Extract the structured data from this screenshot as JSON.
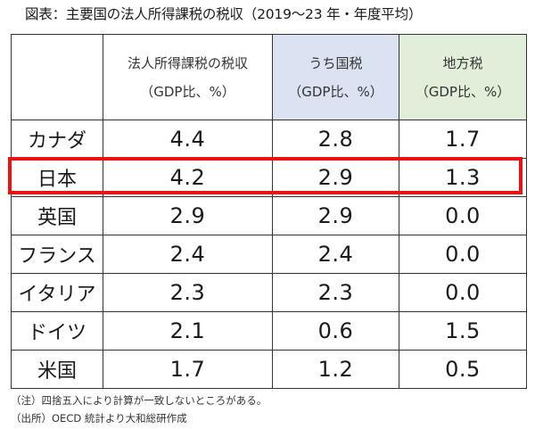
{
  "chart_data": {
    "type": "table",
    "title": "図表：主要国の法人所得課税の税収（2019～23 年・年度平均）",
    "columns": [
      {
        "label": "法人所得課税の税収",
        "unit": "（GDP比、%）",
        "color": "#ffffff"
      },
      {
        "label": "うち国税",
        "unit": "（GDP比、%）",
        "color": "#dbe3f2"
      },
      {
        "label": "地方税",
        "unit": "（GDP比、%）",
        "color": "#e1efda"
      }
    ],
    "rows": [
      {
        "country": "カナダ",
        "values": [
          "4.4",
          "2.8",
          "1.7"
        ]
      },
      {
        "country": "日本",
        "values": [
          "4.2",
          "2.9",
          "1.3"
        ]
      },
      {
        "country": "英国",
        "values": [
          "2.9",
          "2.9",
          "0.0"
        ]
      },
      {
        "country": "フランス",
        "values": [
          "2.4",
          "2.4",
          "0.0"
        ]
      },
      {
        "country": "イタリア",
        "values": [
          "2.3",
          "2.3",
          "0.0"
        ]
      },
      {
        "country": "ドイツ",
        "values": [
          "2.1",
          "0.6",
          "1.5"
        ]
      },
      {
        "country": "米国",
        "values": [
          "1.7",
          "1.2",
          "0.5"
        ]
      }
    ],
    "highlighted_row": "日本",
    "highlight_color": "#ee1111"
  },
  "notes": [
    "（注）四捨五入により計算が一致しないところがある。",
    "（出所）OECD 統計より大和総研作成"
  ]
}
